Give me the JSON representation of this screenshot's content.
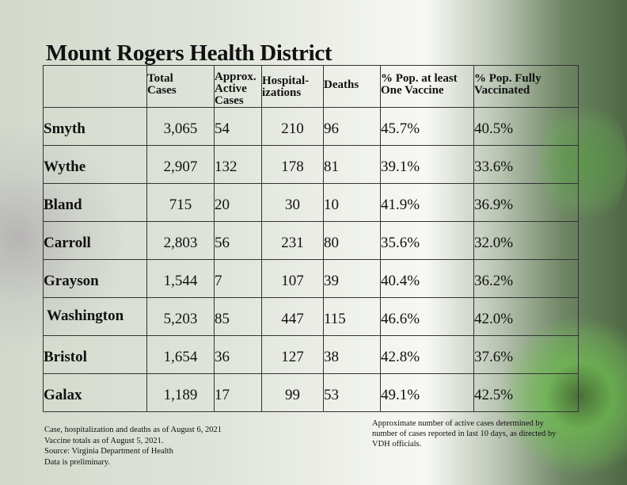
{
  "title": "Mount Rogers Health District",
  "table": {
    "headers": [
      "",
      "Total Cases",
      "Approx. Active Cases",
      "Hospital- izations",
      "Deaths",
      "% Pop. at least One Vaccine",
      "% Pop. Fully Vaccinated"
    ],
    "header_lines": {
      "total": [
        "Total",
        "Cases"
      ],
      "active": [
        "Approx.",
        "Active",
        "Cases"
      ],
      "hosp": [
        "Hospital-",
        "izations"
      ],
      "deaths": [
        "Deaths"
      ],
      "one_vaccine": [
        "% Pop. at least",
        "One Vaccine"
      ],
      "fully": [
        "% Pop. Fully",
        "Vaccinated"
      ]
    },
    "rows": [
      {
        "locality": "Smyth",
        "total_cases": "3,065",
        "active_cases": "54",
        "hospitalizations": "210",
        "deaths": "96",
        "pct_one_vaccine": "45.7%",
        "pct_fully": "40.5%"
      },
      {
        "locality": "Wythe",
        "total_cases": "2,907",
        "active_cases": "132",
        "hospitalizations": "178",
        "deaths": "81",
        "pct_one_vaccine": "39.1%",
        "pct_fully": "33.6%"
      },
      {
        "locality": "Bland",
        "total_cases": "715",
        "active_cases": "20",
        "hospitalizations": "30",
        "deaths": "10",
        "pct_one_vaccine": "41.9%",
        "pct_fully": "36.9%"
      },
      {
        "locality": "Carroll",
        "total_cases": "2,803",
        "active_cases": "56",
        "hospitalizations": "231",
        "deaths": "80",
        "pct_one_vaccine": "35.6%",
        "pct_fully": "32.0%"
      },
      {
        "locality": "Grayson",
        "total_cases": "1,544",
        "active_cases": "7",
        "hospitalizations": "107",
        "deaths": "39",
        "pct_one_vaccine": "40.4%",
        "pct_fully": "36.2%"
      },
      {
        "locality": "Washington",
        "total_cases": "5,203",
        "active_cases": "85",
        "hospitalizations": "447",
        "deaths": "115",
        "pct_one_vaccine": "46.6%",
        "pct_fully": "42.0%"
      },
      {
        "locality": "Bristol",
        "total_cases": "1,654",
        "active_cases": "36",
        "hospitalizations": "127",
        "deaths": "38",
        "pct_one_vaccine": "42.8%",
        "pct_fully": "37.6%"
      },
      {
        "locality": "Galax",
        "total_cases": "1,189",
        "active_cases": "17",
        "hospitalizations": "99",
        "deaths": "53",
        "pct_one_vaccine": "49.1%",
        "pct_fully": "42.5%"
      }
    ]
  },
  "footnotes": {
    "left": [
      "Case, hospitalization and deaths as of August 6, 2021",
      "Vaccine totals as of August 5, 2021.",
      "Source: Virginia Department of Health",
      "Data is preliminary."
    ],
    "right": [
      "Approximate number of active cases determined by",
      "number of cases reported in last 10 days, as directed by",
      "VDH officials."
    ]
  },
  "colors": {
    "border": "#333333",
    "text": "#111111",
    "accent_green": "#4e6844"
  }
}
